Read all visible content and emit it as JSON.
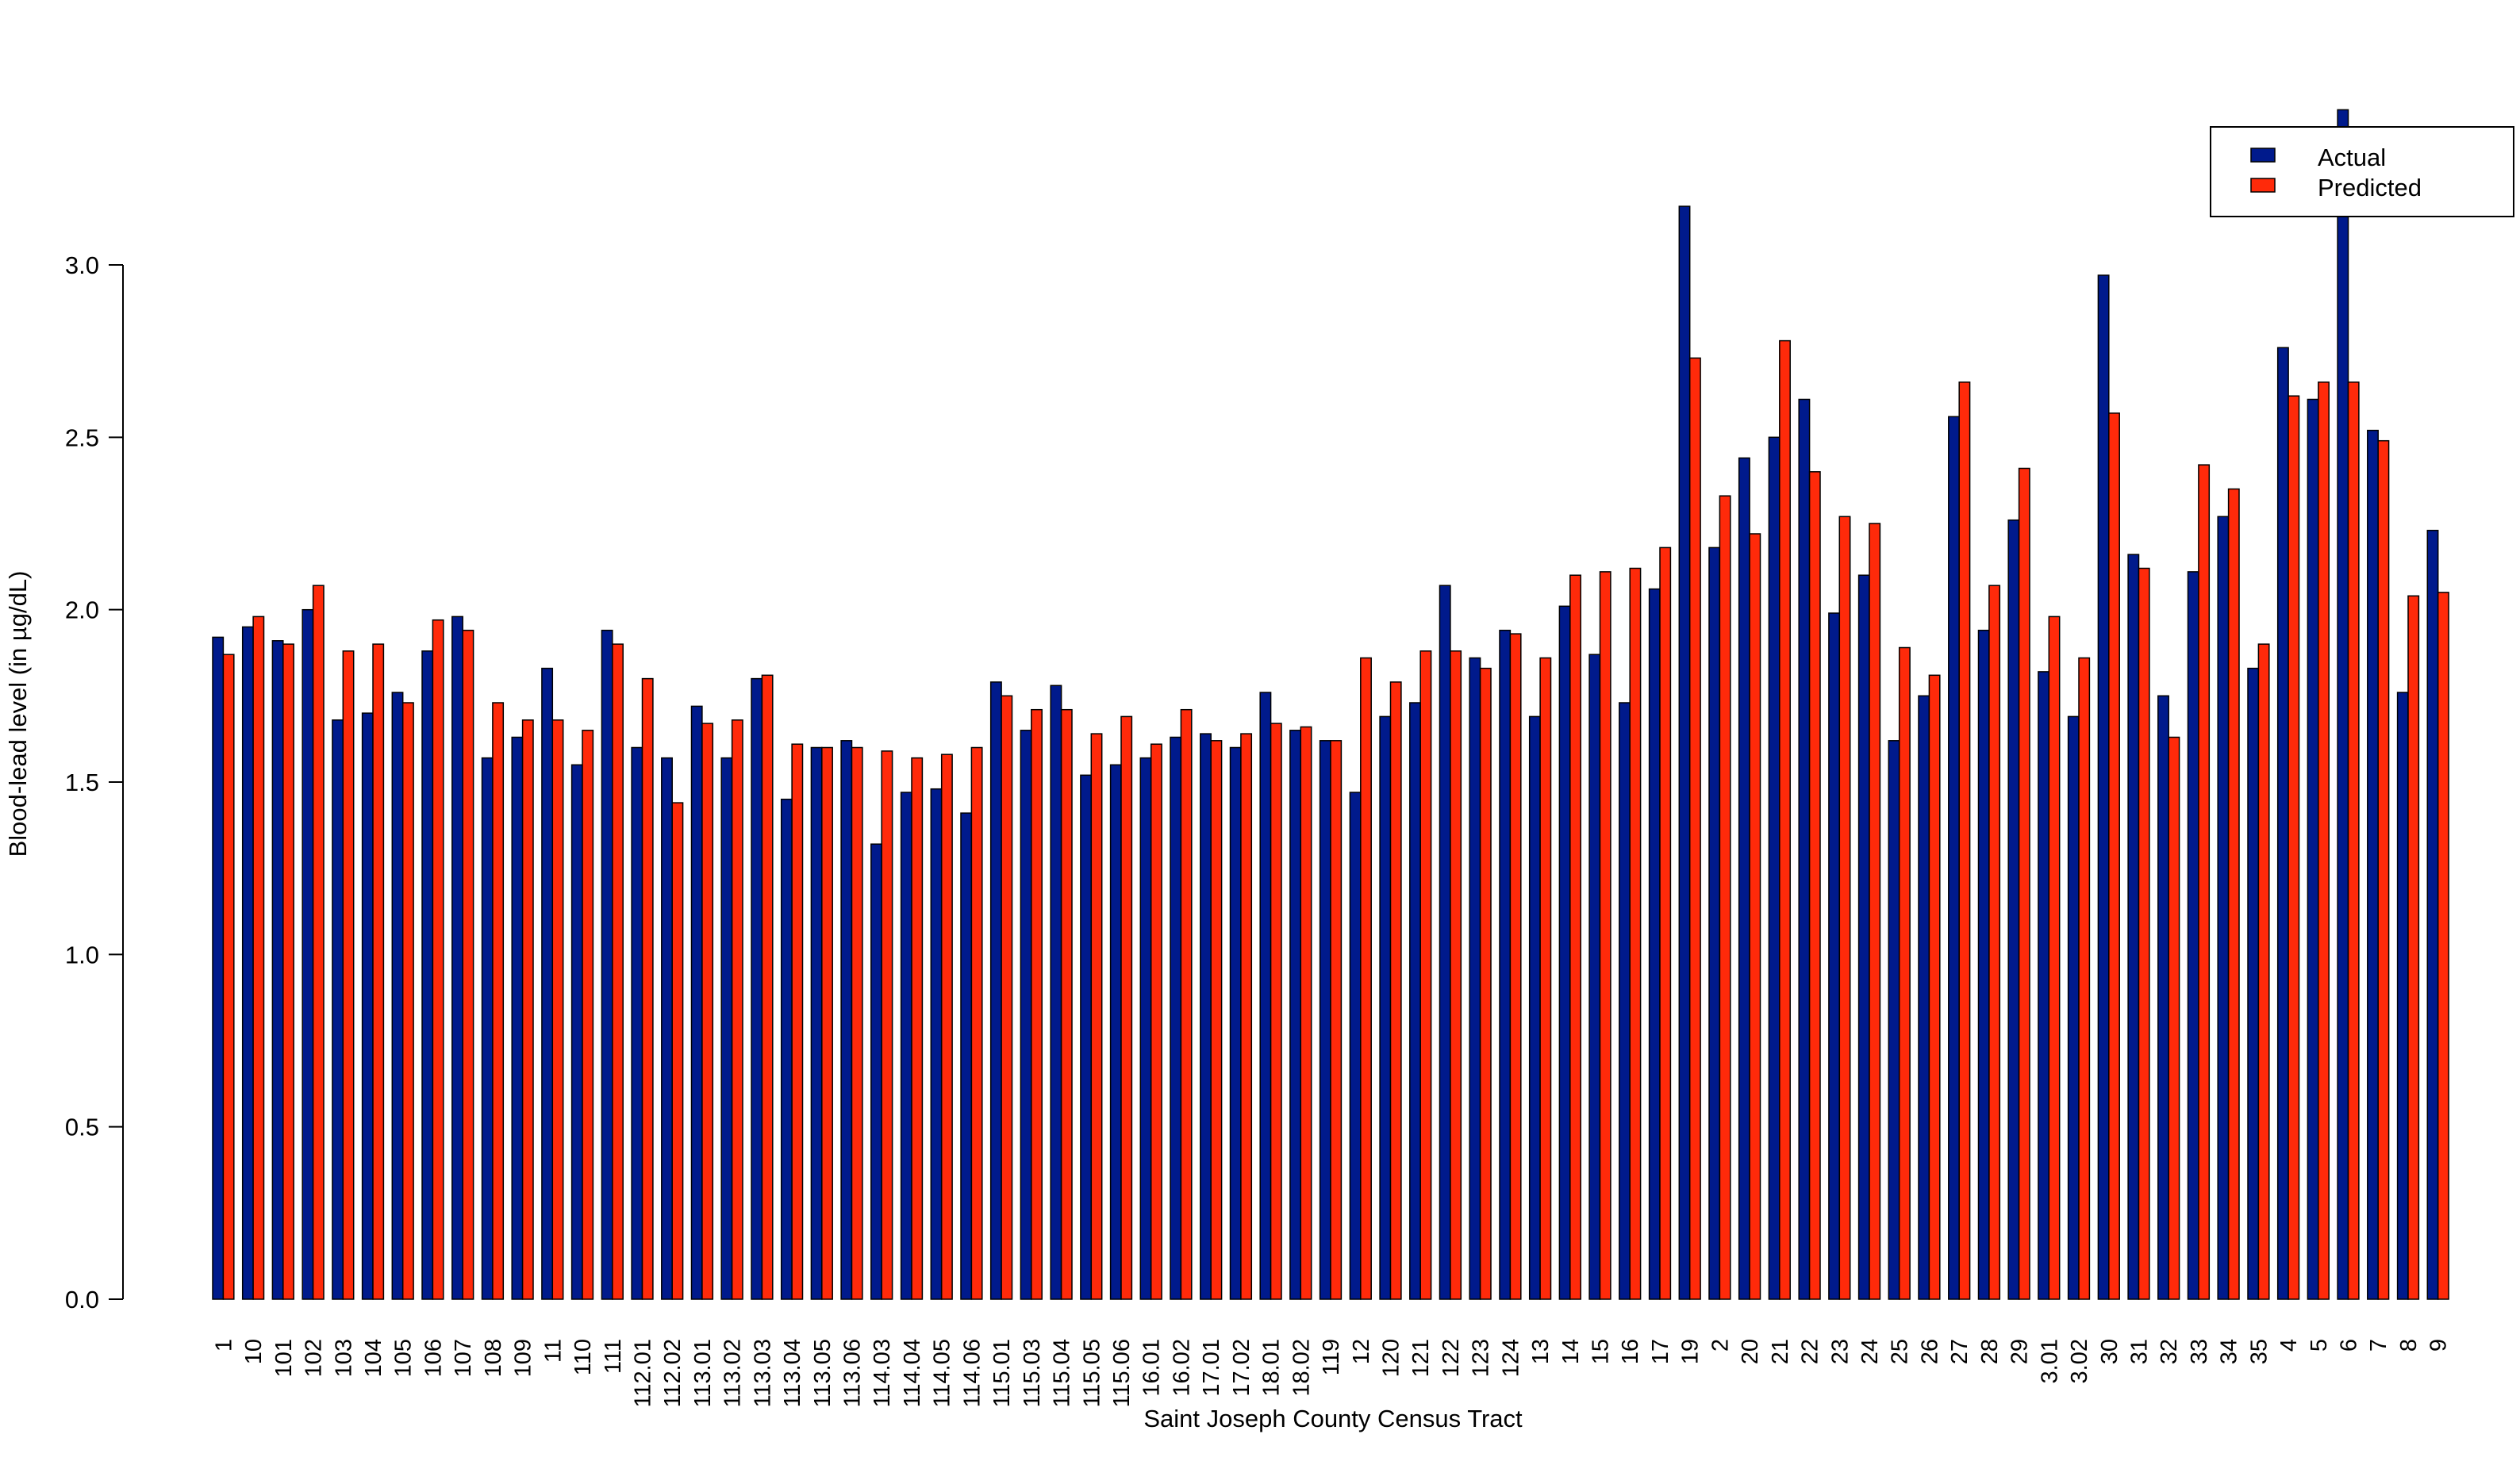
{
  "chart_data": {
    "type": "bar",
    "title": "",
    "xlabel": "Saint Joseph County Census Tract",
    "ylabel": "Blood-lead level (in µg/dL)",
    "ylim": [
      0,
      3.5
    ],
    "yticks": [
      "0.0",
      "0.5",
      "1.0",
      "1.5",
      "2.0",
      "2.5",
      "3.0"
    ],
    "grid": false,
    "legend_position": "top-right",
    "categories": [
      "1",
      "10",
      "101",
      "102",
      "103",
      "104",
      "105",
      "106",
      "107",
      "108",
      "109",
      "11",
      "110",
      "111",
      "112.01",
      "112.02",
      "113.01",
      "113.02",
      "113.03",
      "113.04",
      "113.05",
      "113.06",
      "114.03",
      "114.04",
      "114.05",
      "114.06",
      "115.01",
      "115.03",
      "115.04",
      "115.05",
      "115.06",
      "16.01",
      "16.02",
      "17.01",
      "17.02",
      "18.01",
      "18.02",
      "119",
      "12",
      "120",
      "121",
      "122",
      "123",
      "124",
      "13",
      "14",
      "15",
      "16",
      "17",
      "19",
      "2",
      "20",
      "21",
      "22",
      "23",
      "24",
      "25",
      "26",
      "27",
      "28",
      "29",
      "3.01",
      "3.02",
      "30",
      "31",
      "32",
      "33",
      "34",
      "35",
      "4",
      "5",
      "6",
      "7",
      "8",
      "9"
    ],
    "series": [
      {
        "name": "Actual",
        "color": "#001a8c",
        "values": [
          1.92,
          1.95,
          1.91,
          2.0,
          1.68,
          1.7,
          1.76,
          1.88,
          1.98,
          1.57,
          1.63,
          1.83,
          1.55,
          1.94,
          1.6,
          1.57,
          1.72,
          1.57,
          1.8,
          1.45,
          1.6,
          1.62,
          1.32,
          1.47,
          1.48,
          1.41,
          1.79,
          1.65,
          1.78,
          1.52,
          1.55,
          1.57,
          1.63,
          1.64,
          1.6,
          1.76,
          1.65,
          1.62,
          1.47,
          1.69,
          1.73,
          2.07,
          1.86,
          1.94,
          1.69,
          2.01,
          1.87,
          1.73,
          2.06,
          3.17,
          2.18,
          2.44,
          2.5,
          2.61,
          1.99,
          2.1,
          1.62,
          1.75,
          2.56,
          1.94,
          2.26,
          1.82,
          1.69,
          2.97,
          2.16,
          1.75,
          2.11,
          2.27,
          1.83,
          2.76,
          2.61,
          3.45,
          2.52,
          1.76,
          2.23
        ]
      },
      {
        "name": "Predicted",
        "color": "#ff2a0a",
        "values": [
          1.87,
          1.98,
          1.9,
          2.07,
          1.88,
          1.9,
          1.73,
          1.97,
          1.94,
          1.73,
          1.68,
          1.68,
          1.65,
          1.9,
          1.8,
          1.44,
          1.67,
          1.68,
          1.81,
          1.61,
          1.6,
          1.6,
          1.59,
          1.57,
          1.58,
          1.6,
          1.75,
          1.71,
          1.71,
          1.64,
          1.69,
          1.61,
          1.71,
          1.62,
          1.64,
          1.67,
          1.66,
          1.62,
          1.86,
          1.79,
          1.88,
          1.88,
          1.83,
          1.93,
          1.86,
          2.1,
          2.11,
          2.12,
          2.18,
          2.73,
          2.33,
          2.22,
          2.78,
          2.4,
          2.27,
          2.25,
          1.89,
          1.81,
          2.66,
          2.07,
          2.41,
          1.98,
          1.86,
          2.57,
          2.12,
          1.63,
          2.42,
          2.35,
          1.9,
          2.62,
          2.66,
          2.66,
          2.49,
          2.04,
          2.05
        ]
      }
    ]
  }
}
